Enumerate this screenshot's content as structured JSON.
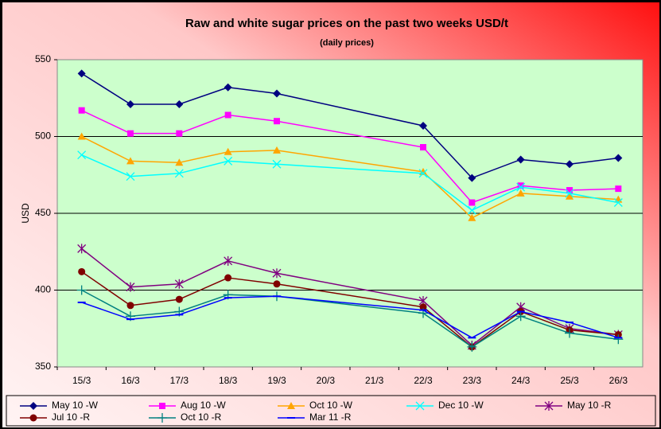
{
  "chart_data": {
    "type": "line",
    "title": "Raw and white sugar prices on the past two weeks USD/t",
    "subtitle": "(daily  prices)",
    "y_label": "USD",
    "categories": [
      "15/3",
      "16/3",
      "17/3",
      "18/3",
      "19/3",
      "20/3",
      "21/3",
      "22/3",
      "23/3",
      "24/3",
      "25/3",
      "26/3"
    ],
    "ylim": [
      350,
      550
    ],
    "yticks": [
      350,
      400,
      450,
      500,
      550
    ],
    "grid": true,
    "series": [
      {
        "name": "May 10 -W",
        "color": "#000080",
        "marker": "diamond",
        "values": [
          541,
          521,
          521,
          532,
          528,
          null,
          null,
          507,
          473,
          485,
          482,
          486
        ]
      },
      {
        "name": "Aug 10 -W",
        "color": "#ff00ff",
        "marker": "square",
        "values": [
          517,
          502,
          502,
          514,
          510,
          null,
          null,
          493,
          457,
          468,
          465,
          466
        ]
      },
      {
        "name": "Oct 10 -W",
        "color": "#ffa500",
        "marker": "triangle",
        "values": [
          500,
          484,
          483,
          490,
          491,
          null,
          null,
          477,
          447,
          463,
          461,
          459
        ]
      },
      {
        "name": "Dec 10 -W",
        "color": "#00ffff",
        "marker": "x",
        "values": [
          488,
          474,
          476,
          484,
          482,
          null,
          null,
          476,
          452,
          467,
          463,
          457
        ]
      },
      {
        "name": "May 10 -R",
        "color": "#800080",
        "marker": "star",
        "values": [
          427,
          402,
          404,
          419,
          411,
          null,
          null,
          393,
          364,
          389,
          375,
          371
        ]
      },
      {
        "name": "Jul 10 -R",
        "color": "#800000",
        "marker": "circle",
        "values": [
          412,
          390,
          394,
          408,
          404,
          null,
          null,
          389,
          363,
          386,
          374,
          371
        ]
      },
      {
        "name": "Oct 10 -R",
        "color": "#008080",
        "marker": "plus",
        "values": [
          400,
          383,
          386,
          397,
          396,
          null,
          null,
          385,
          363,
          383,
          372,
          368
        ]
      },
      {
        "name": "Mar 11 -R",
        "color": "#0000ff",
        "marker": "dash",
        "values": [
          392,
          381,
          384,
          395,
          396,
          null,
          null,
          387,
          369,
          386,
          379,
          369
        ]
      }
    ]
  }
}
